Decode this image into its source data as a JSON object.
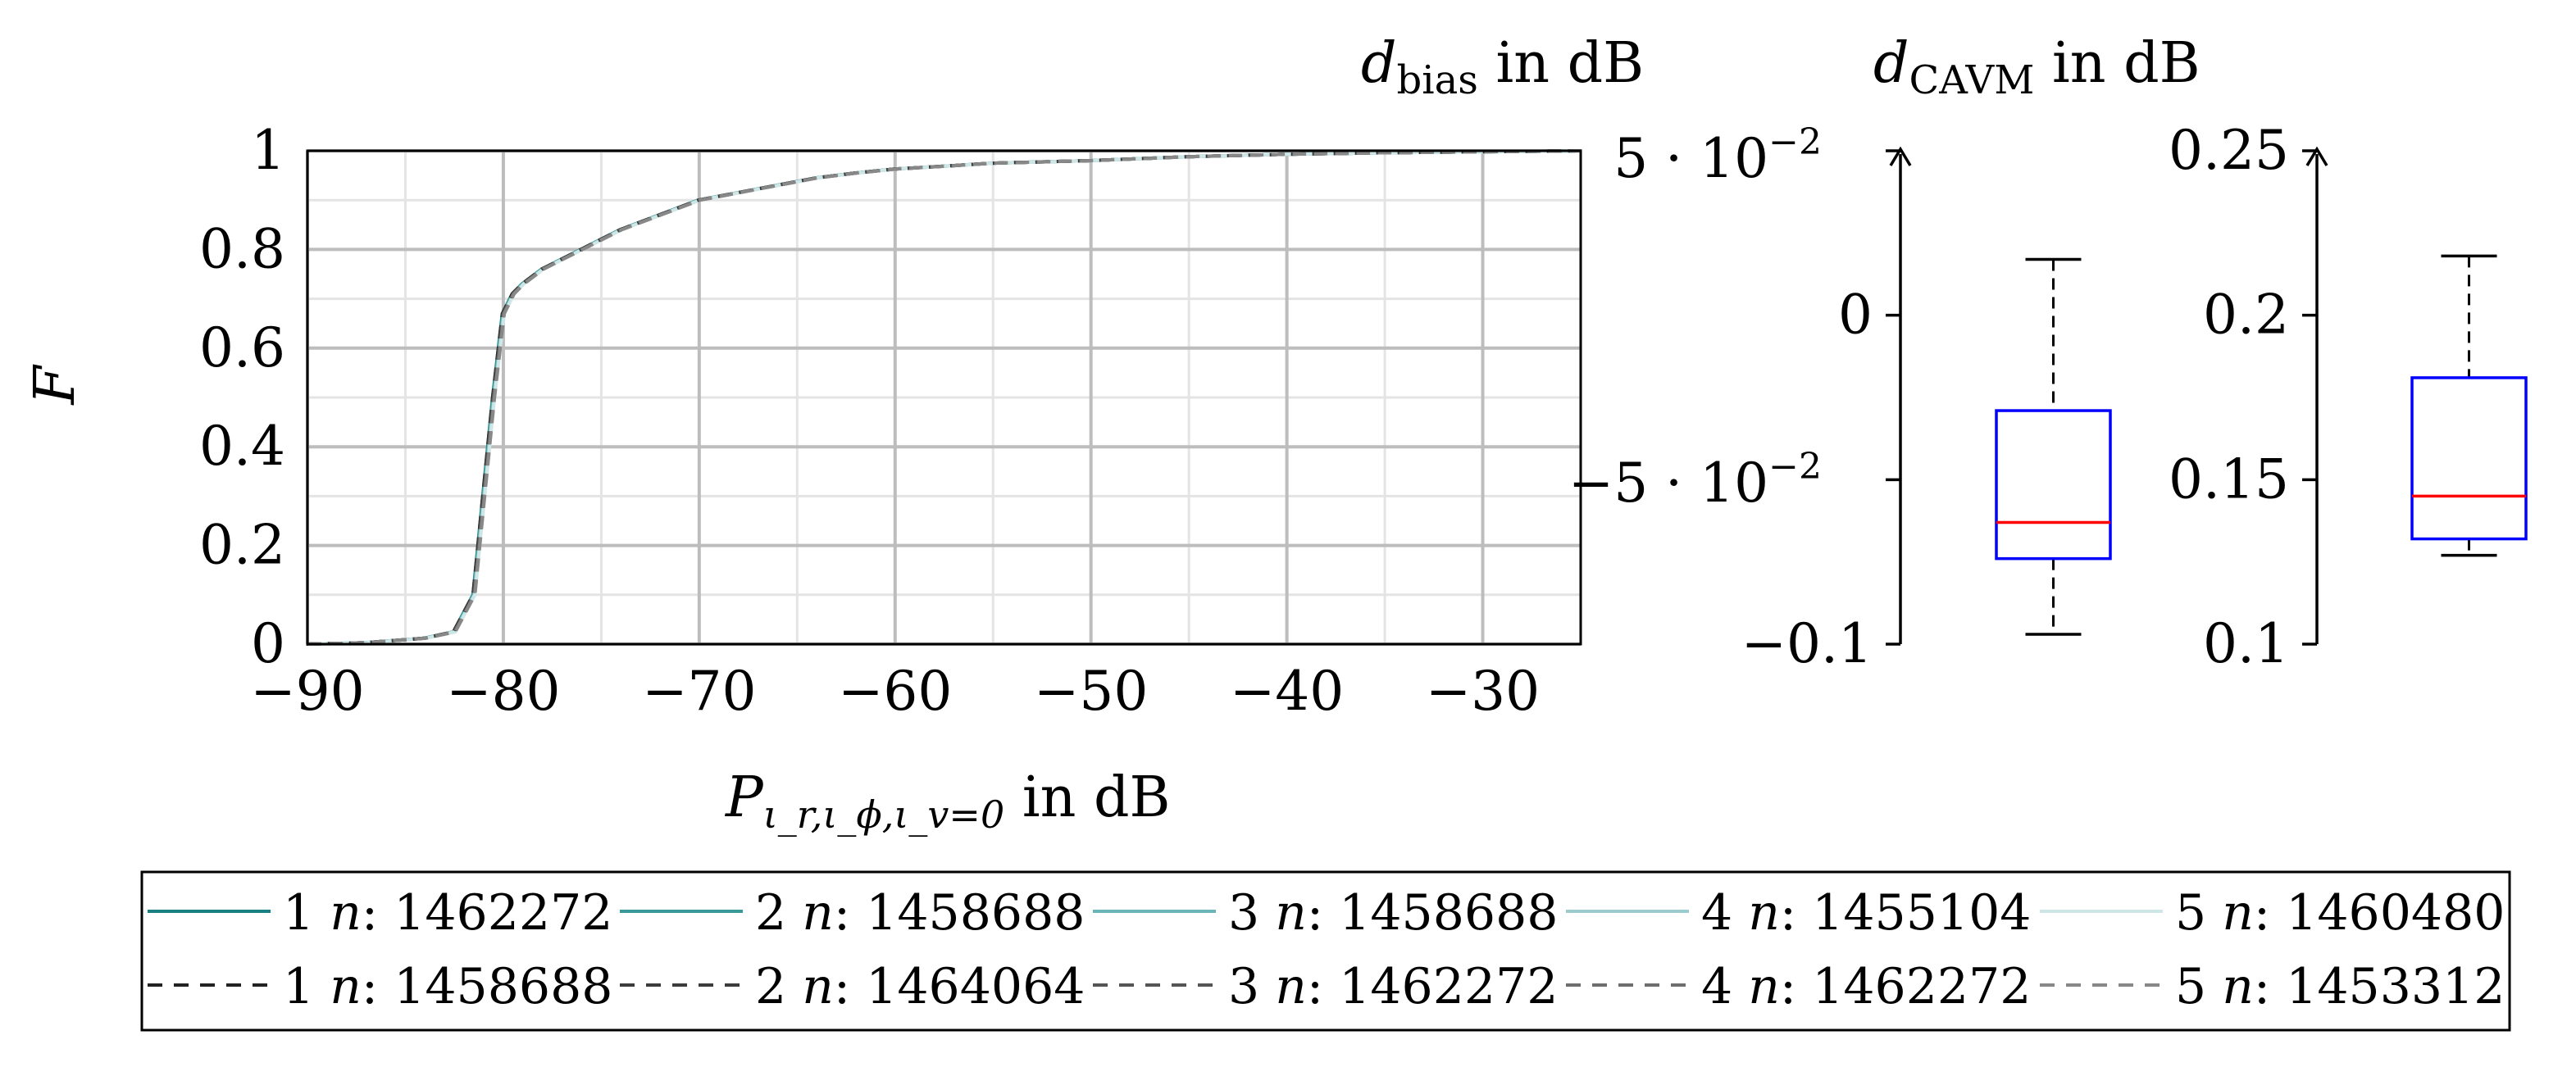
{
  "chart_data": [
    {
      "type": "line",
      "xlabel_base": "P",
      "xlabel_sub": "ι_r,ι_ϕ,ι_v=0",
      "xlabel_unit": " in dB",
      "ylabel": "F",
      "xlim": [
        -90,
        -25
      ],
      "ylim": [
        0,
        1
      ],
      "grid": true,
      "xticks": [
        "−90",
        "−80",
        "−70",
        "−60",
        "−50",
        "−40",
        "−30"
      ],
      "xtick_values": [
        -90,
        -80,
        -70,
        -60,
        -50,
        -40,
        -30
      ],
      "yticks": [
        "0",
        "0.2",
        "0.4",
        "0.6",
        "0.8",
        "1"
      ],
      "ytick_values": [
        0,
        0.2,
        0.4,
        0.6,
        0.8,
        1
      ],
      "x": [
        -90,
        -87,
        -84,
        -82.5,
        -81.5,
        -81,
        -80.5,
        -80,
        -79.5,
        -79,
        -78,
        -77,
        -76,
        -74,
        -72,
        -70,
        -68,
        -66,
        -64,
        -62,
        -60,
        -57,
        -55,
        -50,
        -45,
        -40,
        -35,
        -30,
        -25
      ],
      "cdf": [
        0,
        0.003,
        0.012,
        0.025,
        0.1,
        0.3,
        0.5,
        0.67,
        0.71,
        0.73,
        0.76,
        0.78,
        0.8,
        0.84,
        0.87,
        0.9,
        0.915,
        0.93,
        0.945,
        0.955,
        0.963,
        0.97,
        0.975,
        0.98,
        0.988,
        0.993,
        0.996,
        0.998,
        1.0
      ],
      "series": [
        {
          "label": "1 ",
          "n_label": "n",
          "count": ": 1462272",
          "color": "#1a7f80",
          "style": "solid"
        },
        {
          "label": "2 ",
          "n_label": "n",
          "count": ": 1458688",
          "color": "#3a9898",
          "style": "solid"
        },
        {
          "label": "3 ",
          "n_label": "n",
          "count": ": 1458688",
          "color": "#6cb5b6",
          "style": "solid"
        },
        {
          "label": "4 ",
          "n_label": "n",
          "count": ": 1455104",
          "color": "#9ccccd",
          "style": "solid"
        },
        {
          "label": "5 ",
          "n_label": "n",
          "count": ": 1460480",
          "color": "#cfe6e7",
          "style": "solid"
        },
        {
          "label": "1 ",
          "n_label": "n",
          "count": ": 1458688",
          "color": "#222222",
          "style": "dashed"
        },
        {
          "label": "2 ",
          "n_label": "n",
          "count": ": 1464064",
          "color": "#3c3c3c",
          "style": "dashed"
        },
        {
          "label": "3 ",
          "n_label": "n",
          "count": ": 1462272",
          "color": "#555555",
          "style": "dashed"
        },
        {
          "label": "4 ",
          "n_label": "n",
          "count": ": 1462272",
          "color": "#6e6e6e",
          "style": "dashed"
        },
        {
          "label": "5 ",
          "n_label": "n",
          "count": ": 1453312",
          "color": "#888888",
          "style": "dashed"
        }
      ]
    },
    {
      "type": "box",
      "title_var": "d",
      "title_sub": "bias",
      "title_unit": " in dB",
      "ylim": [
        -0.1,
        0.05
      ],
      "ytick_values": [
        -0.1,
        -0.05,
        0,
        0.05
      ],
      "yticks_plain": [
        "−0.1",
        "",
        "0",
        ""
      ],
      "whisker_low": -0.097,
      "q1": -0.074,
      "median": -0.063,
      "q3": -0.029,
      "whisker_high": 0.017,
      "box_color": "#0000ff",
      "median_color": "#ff0000"
    },
    {
      "type": "box",
      "title_var": "d",
      "title_sub": "CAVM",
      "title_unit": " in dB",
      "ylim": [
        0.1,
        0.25
      ],
      "ytick_values": [
        0.1,
        0.15,
        0.2,
        0.25
      ],
      "yticks_plain": [
        "0.1",
        "0.15",
        "0.2",
        "0.25"
      ],
      "whisker_low": 0.127,
      "q1": 0.132,
      "median": 0.145,
      "q3": 0.181,
      "whisker_high": 0.218,
      "box_color": "#0000ff",
      "median_color": "#ff0000"
    }
  ],
  "sci_ticks": {
    "top_mant": "5 · 10",
    "top_exp": "−2",
    "mid_mant": "−5 · 10",
    "mid_exp": "−2"
  }
}
